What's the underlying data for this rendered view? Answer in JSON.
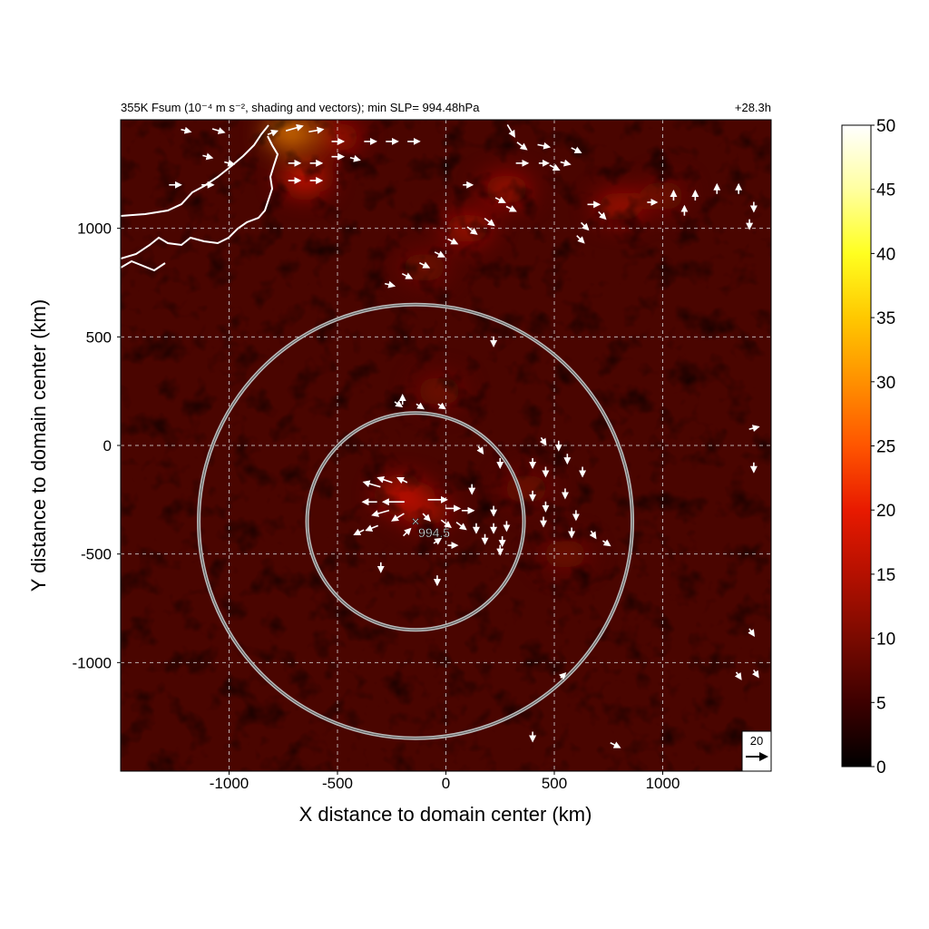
{
  "chart_data": {
    "type": "heatmap",
    "title": "355K Fsum (10⁻⁴ m s⁻², shading and vectors); min SLP= 994.48hPa",
    "subtitle": "+28.3h",
    "xlabel": "X distance to domain center (km)",
    "ylabel": "Y distance to domain center (km)",
    "xlim": [
      -1500,
      1500
    ],
    "ylim": [
      -1500,
      1500
    ],
    "xticks": [
      -1000,
      -500,
      0,
      500,
      1000
    ],
    "yticks": [
      1000,
      500,
      0,
      -500,
      -1000
    ],
    "grid": true,
    "colorbar": {
      "ticks": [
        0,
        5,
        10,
        15,
        20,
        25,
        30,
        35,
        40,
        45,
        50
      ],
      "range": [
        0,
        50
      ],
      "colors": [
        "#000000",
        "#3d0000",
        "#7a0a00",
        "#b51000",
        "#e81a00",
        "#ff5500",
        "#ff9000",
        "#ffc800",
        "#ffff20",
        "#ffffa0",
        "#ffffff"
      ]
    },
    "storm_center": {
      "x": -140,
      "y": -350,
      "label": "994.5"
    },
    "range_rings_km": [
      500,
      1000
    ],
    "reference_vector": {
      "label": "20",
      "value": 20
    },
    "hotspots": [
      {
        "x": -200,
        "y": -230,
        "value": 22
      },
      {
        "x": -90,
        "y": -300,
        "value": 16
      },
      {
        "x": -650,
        "y": 1230,
        "value": 18
      },
      {
        "x": -720,
        "y": 1440,
        "value": 28
      },
      {
        "x": 280,
        "y": 1180,
        "value": 14
      },
      {
        "x": 100,
        "y": 1000,
        "value": 13
      },
      {
        "x": -100,
        "y": 820,
        "value": 12
      },
      {
        "x": 800,
        "y": 1100,
        "value": 14
      },
      {
        "x": 1000,
        "y": 1150,
        "value": 12
      },
      {
        "x": 550,
        "y": -500,
        "value": 12
      },
      {
        "x": -30,
        "y": 250,
        "value": 10
      },
      {
        "x": 370,
        "y": -200,
        "value": 11
      },
      {
        "x": -500,
        "y": 1420,
        "value": 14
      }
    ],
    "vectors": [
      {
        "x": -1200,
        "y": 1450,
        "u": 8,
        "v": -2
      },
      {
        "x": -1050,
        "y": 1450,
        "u": 10,
        "v": -3
      },
      {
        "x": -800,
        "y": 1440,
        "u": 8,
        "v": 3
      },
      {
        "x": -700,
        "y": 1460,
        "u": 14,
        "v": 4
      },
      {
        "x": -600,
        "y": 1450,
        "u": 12,
        "v": 2
      },
      {
        "x": -500,
        "y": 1400,
        "u": 10,
        "v": 0
      },
      {
        "x": -350,
        "y": 1400,
        "u": 10,
        "v": 0
      },
      {
        "x": -250,
        "y": 1400,
        "u": 10,
        "v": 0
      },
      {
        "x": -150,
        "y": 1400,
        "u": 10,
        "v": 0
      },
      {
        "x": 300,
        "y": 1450,
        "u": 6,
        "v": -10
      },
      {
        "x": 350,
        "y": 1380,
        "u": 8,
        "v": -6
      },
      {
        "x": 450,
        "y": 1380,
        "u": 10,
        "v": -2
      },
      {
        "x": 600,
        "y": 1360,
        "u": 8,
        "v": -4
      },
      {
        "x": -700,
        "y": 1300,
        "u": 10,
        "v": 0
      },
      {
        "x": -600,
        "y": 1300,
        "u": 10,
        "v": 0
      },
      {
        "x": -500,
        "y": 1330,
        "u": 10,
        "v": 0
      },
      {
        "x": -1100,
        "y": 1330,
        "u": 8,
        "v": -2
      },
      {
        "x": -1000,
        "y": 1300,
        "u": 8,
        "v": -2
      },
      {
        "x": -700,
        "y": 1220,
        "u": 10,
        "v": 0
      },
      {
        "x": -600,
        "y": 1220,
        "u": 10,
        "v": 0
      },
      {
        "x": -1250,
        "y": 1200,
        "u": 10,
        "v": 0
      },
      {
        "x": -1100,
        "y": 1200,
        "u": 10,
        "v": 0
      },
      {
        "x": 100,
        "y": 1200,
        "u": 8,
        "v": 0
      },
      {
        "x": 350,
        "y": 1300,
        "u": 10,
        "v": 0
      },
      {
        "x": 450,
        "y": 1300,
        "u": 8,
        "v": 0
      },
      {
        "x": 550,
        "y": 1300,
        "u": 8,
        "v": -2
      },
      {
        "x": 250,
        "y": 1130,
        "u": 8,
        "v": -4
      },
      {
        "x": 300,
        "y": 1090,
        "u": 8,
        "v": -4
      },
      {
        "x": 200,
        "y": 1030,
        "u": 8,
        "v": -6
      },
      {
        "x": 120,
        "y": 990,
        "u": 8,
        "v": -6
      },
      {
        "x": 30,
        "y": 940,
        "u": 8,
        "v": -4
      },
      {
        "x": -30,
        "y": 880,
        "u": 8,
        "v": -4
      },
      {
        "x": -100,
        "y": 830,
        "u": 8,
        "v": -4
      },
      {
        "x": -180,
        "y": 780,
        "u": 8,
        "v": -4
      },
      {
        "x": -260,
        "y": 740,
        "u": 8,
        "v": -2
      },
      {
        "x": 680,
        "y": 1110,
        "u": 10,
        "v": 0
      },
      {
        "x": 720,
        "y": 1060,
        "u": 6,
        "v": -6
      },
      {
        "x": 640,
        "y": 1010,
        "u": 6,
        "v": -6
      },
      {
        "x": 620,
        "y": 950,
        "u": 6,
        "v": -6
      },
      {
        "x": 1050,
        "y": 1150,
        "u": 0,
        "v": 8
      },
      {
        "x": 1150,
        "y": 1150,
        "u": 0,
        "v": 8
      },
      {
        "x": 1250,
        "y": 1180,
        "u": 0,
        "v": 8
      },
      {
        "x": 1350,
        "y": 1180,
        "u": 0,
        "v": 8
      },
      {
        "x": 1420,
        "y": 1100,
        "u": 0,
        "v": -8
      },
      {
        "x": 950,
        "y": 1120,
        "u": 8,
        "v": 0
      },
      {
        "x": 1100,
        "y": 1080,
        "u": 0,
        "v": 8
      },
      {
        "x": 1400,
        "y": 1020,
        "u": 0,
        "v": -8
      },
      {
        "x": 220,
        "y": 480,
        "u": 0,
        "v": -8
      },
      {
        "x": -220,
        "y": 190,
        "u": 6,
        "v": -4
      },
      {
        "x": -120,
        "y": 180,
        "u": 6,
        "v": -4
      },
      {
        "x": -20,
        "y": 180,
        "u": 6,
        "v": -4
      },
      {
        "x": -200,
        "y": 210,
        "u": 0,
        "v": 8
      },
      {
        "x": 160,
        "y": -20,
        "u": 4,
        "v": -6
      },
      {
        "x": 250,
        "y": -80,
        "u": 0,
        "v": -8
      },
      {
        "x": 450,
        "y": 20,
        "u": 4,
        "v": -6
      },
      {
        "x": 520,
        "y": 0,
        "u": 0,
        "v": -8
      },
      {
        "x": 400,
        "y": -80,
        "u": 0,
        "v": -8
      },
      {
        "x": 460,
        "y": -120,
        "u": 0,
        "v": -8
      },
      {
        "x": 560,
        "y": -60,
        "u": 0,
        "v": -8
      },
      {
        "x": 630,
        "y": -120,
        "u": 0,
        "v": -8
      },
      {
        "x": 400,
        "y": -230,
        "u": 0,
        "v": -8
      },
      {
        "x": 460,
        "y": -280,
        "u": 0,
        "v": -8
      },
      {
        "x": 550,
        "y": -220,
        "u": 0,
        "v": -8
      },
      {
        "x": 450,
        "y": -350,
        "u": 0,
        "v": -8
      },
      {
        "x": 600,
        "y": -320,
        "u": 0,
        "v": -8
      },
      {
        "x": 680,
        "y": -410,
        "u": 4,
        "v": -6
      },
      {
        "x": 740,
        "y": -450,
        "u": 6,
        "v": -4
      },
      {
        "x": 580,
        "y": -400,
        "u": 0,
        "v": -8
      },
      {
        "x": -340,
        "y": -180,
        "u": -14,
        "v": 4
      },
      {
        "x": -280,
        "y": -160,
        "u": -12,
        "v": 4
      },
      {
        "x": -200,
        "y": -160,
        "u": -8,
        "v": 4
      },
      {
        "x": -350,
        "y": -260,
        "u": -12,
        "v": 0
      },
      {
        "x": -240,
        "y": -260,
        "u": -18,
        "v": 0
      },
      {
        "x": -300,
        "y": -310,
        "u": -14,
        "v": -4
      },
      {
        "x": -220,
        "y": -330,
        "u": -10,
        "v": -6
      },
      {
        "x": -340,
        "y": -380,
        "u": -10,
        "v": -4
      },
      {
        "x": -400,
        "y": -400,
        "u": -8,
        "v": -4
      },
      {
        "x": -40,
        "y": -250,
        "u": 16,
        "v": 0
      },
      {
        "x": 30,
        "y": -290,
        "u": 12,
        "v": 0
      },
      {
        "x": 100,
        "y": -300,
        "u": 10,
        "v": 0
      },
      {
        "x": -90,
        "y": -330,
        "u": 6,
        "v": -6
      },
      {
        "x": 0,
        "y": -360,
        "u": 8,
        "v": -6
      },
      {
        "x": 70,
        "y": -370,
        "u": 8,
        "v": -6
      },
      {
        "x": 140,
        "y": -380,
        "u": 0,
        "v": -8
      },
      {
        "x": 220,
        "y": -380,
        "u": 0,
        "v": -8
      },
      {
        "x": 220,
        "y": -300,
        "u": 0,
        "v": -8
      },
      {
        "x": 280,
        "y": -370,
        "u": 0,
        "v": -8
      },
      {
        "x": 260,
        "y": -440,
        "u": 0,
        "v": -8
      },
      {
        "x": 180,
        "y": -430,
        "u": 0,
        "v": -8
      },
      {
        "x": -40,
        "y": -440,
        "u": 6,
        "v": 4
      },
      {
        "x": 30,
        "y": -460,
        "u": 8,
        "v": 0
      },
      {
        "x": -180,
        "y": -400,
        "u": 6,
        "v": 6
      },
      {
        "x": -40,
        "y": -620,
        "u": 0,
        "v": -8
      },
      {
        "x": -300,
        "y": -560,
        "u": 0,
        "v": -8
      },
      {
        "x": 120,
        "y": -200,
        "u": 0,
        "v": -8
      },
      {
        "x": 250,
        "y": -480,
        "u": 0,
        "v": -8
      },
      {
        "x": 1420,
        "y": 80,
        "u": 8,
        "v": 2
      },
      {
        "x": 1420,
        "y": -100,
        "u": 0,
        "v": -8
      },
      {
        "x": 1410,
        "y": -860,
        "u": 4,
        "v": -6
      },
      {
        "x": 540,
        "y": -1060,
        "u": 4,
        "v": 4
      },
      {
        "x": 1350,
        "y": -1060,
        "u": 4,
        "v": -6
      },
      {
        "x": 1430,
        "y": -1050,
        "u": 4,
        "v": -6
      },
      {
        "x": 400,
        "y": -1340,
        "u": 0,
        "v": -8
      },
      {
        "x": 780,
        "y": -1380,
        "u": 8,
        "v": -4
      },
      {
        "x": 500,
        "y": 1280,
        "u": 8,
        "v": -4
      },
      {
        "x": -420,
        "y": 1320,
        "u": 8,
        "v": -2
      }
    ]
  },
  "labels": {
    "storm_label": "994.5",
    "ref_value": "20"
  }
}
